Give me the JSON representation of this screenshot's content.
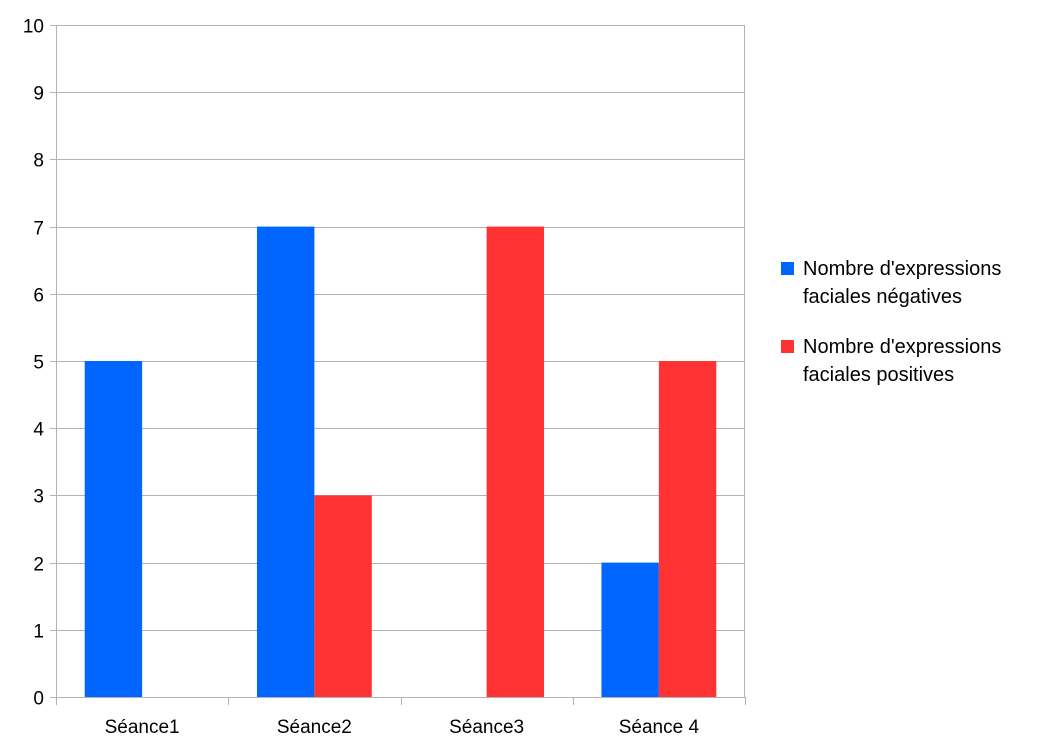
{
  "chart_data": {
    "type": "bar",
    "categories": [
      "Séance1",
      "Séance2",
      "Séance3",
      "Séance 4"
    ],
    "series": [
      {
        "name": "Nombre d'expressions faciales négatives",
        "legend_lines": [
          "Nombre d'expressions",
          "faciales négatives"
        ],
        "color": "#0066ff",
        "values": [
          5,
          7,
          0,
          2
        ]
      },
      {
        "name": "Nombre d'expressions faciales positives",
        "legend_lines": [
          "Nombre d'expressions",
          "faciales positives"
        ],
        "color": "#ff3333",
        "values": [
          0,
          3,
          7,
          5
        ]
      }
    ],
    "ylim": [
      0,
      10
    ],
    "yticks": [
      "0",
      "1",
      "2",
      "3",
      "4",
      "5",
      "6",
      "7",
      "8",
      "9",
      "10"
    ],
    "grid": true,
    "grid_color": "#b3b3b3",
    "legend_position": "right"
  }
}
